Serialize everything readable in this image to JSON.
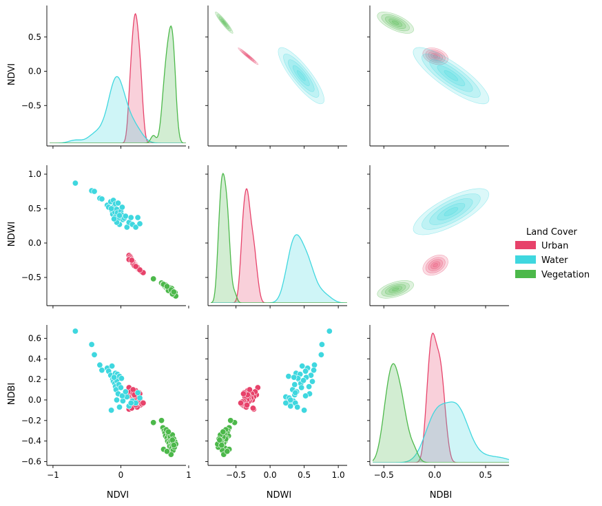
{
  "chart_data": {
    "type": "pairplot",
    "variables": [
      "NDVI",
      "NDWI",
      "NDBI"
    ],
    "legend": {
      "title": "Land Cover",
      "placement": "right",
      "entries": [
        {
          "label": "Urban",
          "color": "#e7426a"
        },
        {
          "label": "Water",
          "color": "#3fd7df"
        },
        {
          "label": "Vegetation",
          "color": "#4cb84a"
        }
      ]
    },
    "axes": {
      "NDVI": {
        "ticks": [
          -1,
          0,
          1
        ],
        "tick_labels": [
          "−1",
          "0",
          "1"
        ],
        "row_ticks": [
          -0.5,
          0.0,
          0.5
        ],
        "row_tick_labels": [
          "−0.5",
          "0.0",
          "0.5"
        ],
        "lim": [
          -1.05,
          0.96
        ]
      },
      "NDWI": {
        "ticks": [
          -0.5,
          0.0,
          0.5,
          1.0
        ],
        "tick_labels": [
          "−0.5",
          "0.0",
          "0.5",
          "1.0"
        ],
        "lim": [
          -0.87,
          1.13
        ]
      },
      "NDBI": {
        "ticks": [
          -0.5,
          0.0,
          0.5
        ],
        "tick_labels": [
          "−0.5",
          "0.0",
          "0.5"
        ],
        "row_ticks": [
          -0.6,
          -0.4,
          -0.2,
          0.0,
          0.2,
          0.4,
          0.6
        ],
        "row_tick_labels": [
          "−0.6",
          "−0.4",
          "−0.2",
          "0.0",
          "0.2",
          "0.4",
          "0.6"
        ],
        "lim": [
          -0.61,
          0.73
        ]
      }
    },
    "groups": {
      "Urban": {
        "NDVI": [
          0.12,
          0.14,
          0.15,
          0.16,
          0.17,
          0.18,
          0.19,
          0.2,
          0.2,
          0.21,
          0.22,
          0.22,
          0.23,
          0.24,
          0.25,
          0.25,
          0.26,
          0.27,
          0.28,
          0.29,
          0.3,
          0.31,
          0.33,
          0.12,
          0.18,
          0.24,
          0.2,
          0.16,
          0.28,
          0.22
        ],
        "NDWI": [
          -0.18,
          -0.2,
          -0.22,
          -0.24,
          -0.26,
          -0.27,
          -0.28,
          -0.3,
          -0.31,
          -0.32,
          -0.32,
          -0.33,
          -0.34,
          -0.35,
          -0.36,
          -0.37,
          -0.38,
          -0.38,
          -0.39,
          -0.4,
          -0.41,
          -0.42,
          -0.43,
          -0.24,
          -0.3,
          -0.35,
          -0.33,
          -0.25,
          -0.39,
          -0.34
        ],
        "NDBI": [
          0.12,
          0.05,
          0.08,
          0.03,
          0.0,
          0.06,
          0.02,
          -0.01,
          0.04,
          0.01,
          -0.02,
          0.09,
          0.0,
          -0.04,
          -0.03,
          0.03,
          -0.06,
          0.07,
          -0.01,
          -0.05,
          -0.02,
          -0.04,
          -0.03,
          -0.09,
          0.1,
          -0.07,
          0.05,
          -0.08,
          0.06,
          -0.05
        ]
      },
      "Water": {
        "NDVI": [
          -0.67,
          -0.43,
          -0.39,
          -0.31,
          -0.28,
          -0.2,
          -0.18,
          -0.15,
          -0.13,
          -0.12,
          -0.11,
          -0.1,
          -0.09,
          -0.08,
          -0.08,
          -0.07,
          -0.06,
          -0.05,
          -0.04,
          -0.03,
          -0.02,
          0.0,
          0.01,
          0.03,
          0.05,
          0.09,
          0.12,
          0.17,
          0.22,
          0.28,
          -0.14,
          -0.06,
          0.02,
          0.07,
          -0.1,
          0.15,
          0.25,
          -0.02
        ],
        "NDWI": [
          0.87,
          0.76,
          0.75,
          0.65,
          0.64,
          0.55,
          0.52,
          0.6,
          0.47,
          0.42,
          0.62,
          0.53,
          0.45,
          0.38,
          0.57,
          0.33,
          0.49,
          0.44,
          0.58,
          0.36,
          0.27,
          0.46,
          0.41,
          0.34,
          0.36,
          0.23,
          0.3,
          0.27,
          0.23,
          0.28,
          0.5,
          0.3,
          0.52,
          0.39,
          0.35,
          0.37,
          0.37,
          0.4
        ],
        "NDBI": [
          0.67,
          0.54,
          0.44,
          0.34,
          0.29,
          0.31,
          0.28,
          0.24,
          0.33,
          0.2,
          0.18,
          0.22,
          0.16,
          0.26,
          0.13,
          0.1,
          0.19,
          0.25,
          0.06,
          0.15,
          0.23,
          0.12,
          0.21,
          -0.01,
          0.05,
          0.03,
          -0.06,
          -0.01,
          -0.03,
          0.02,
          -0.1,
          -0.0,
          0.04,
          0.08,
          0.22,
          -0.03,
          0.07,
          -0.07
        ]
      },
      "Vegetation": {
        "NDVI": [
          0.48,
          0.6,
          0.62,
          0.64,
          0.65,
          0.66,
          0.67,
          0.68,
          0.69,
          0.7,
          0.71,
          0.72,
          0.72,
          0.73,
          0.74,
          0.75,
          0.75,
          0.76,
          0.77,
          0.77,
          0.78,
          0.79,
          0.8,
          0.81,
          0.63,
          0.7,
          0.74,
          0.76,
          0.68,
          0.78
        ],
        "NDWI": [
          -0.52,
          -0.58,
          -0.6,
          -0.62,
          -0.63,
          -0.61,
          -0.65,
          -0.64,
          -0.66,
          -0.67,
          -0.68,
          -0.65,
          -0.7,
          -0.69,
          -0.71,
          -0.72,
          -0.66,
          -0.73,
          -0.74,
          -0.7,
          -0.75,
          -0.76,
          -0.72,
          -0.77,
          -0.6,
          -0.69,
          -0.68,
          -0.74,
          -0.63,
          -0.71
        ],
        "NDBI": [
          -0.22,
          -0.2,
          -0.27,
          -0.3,
          -0.32,
          -0.35,
          -0.29,
          -0.37,
          -0.4,
          -0.33,
          -0.42,
          -0.38,
          -0.45,
          -0.36,
          -0.4,
          -0.44,
          -0.47,
          -0.34,
          -0.42,
          -0.49,
          -0.38,
          -0.46,
          -0.41,
          -0.43,
          -0.48,
          -0.31,
          -0.53,
          -0.39,
          -0.5,
          -0.44
        ]
      }
    }
  }
}
